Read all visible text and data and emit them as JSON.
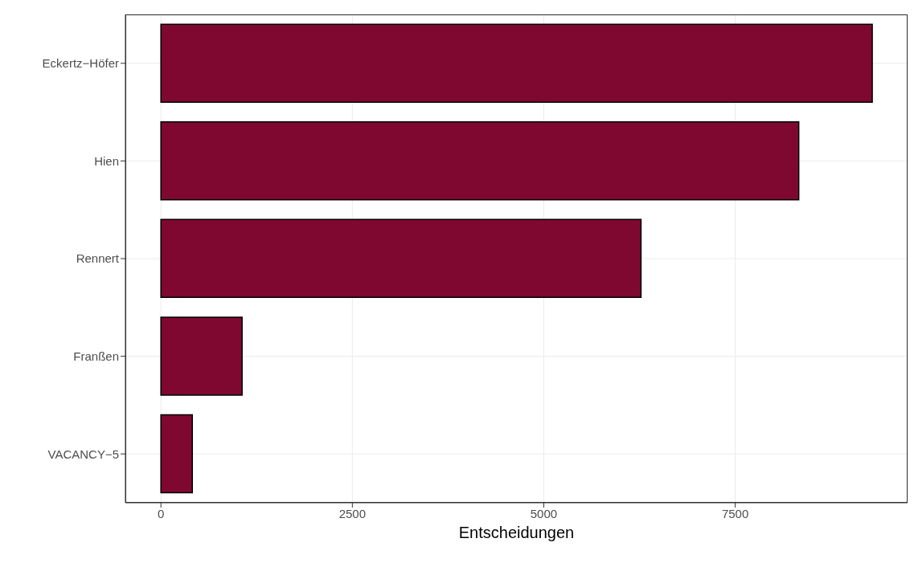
{
  "chart_data": {
    "type": "bar",
    "orientation": "horizontal",
    "xlabel": "Entscheidungen",
    "categories": [
      "Eckertz−Höfer",
      "Hien",
      "Rennert",
      "Franßen",
      "VACANCY−5"
    ],
    "values": [
      9290,
      8330,
      6270,
      1060,
      410
    ],
    "color": "#7f0831",
    "xlim": [
      -464,
      9751
    ],
    "xticks": [
      0,
      2500,
      5000,
      7500
    ],
    "grid": true
  }
}
